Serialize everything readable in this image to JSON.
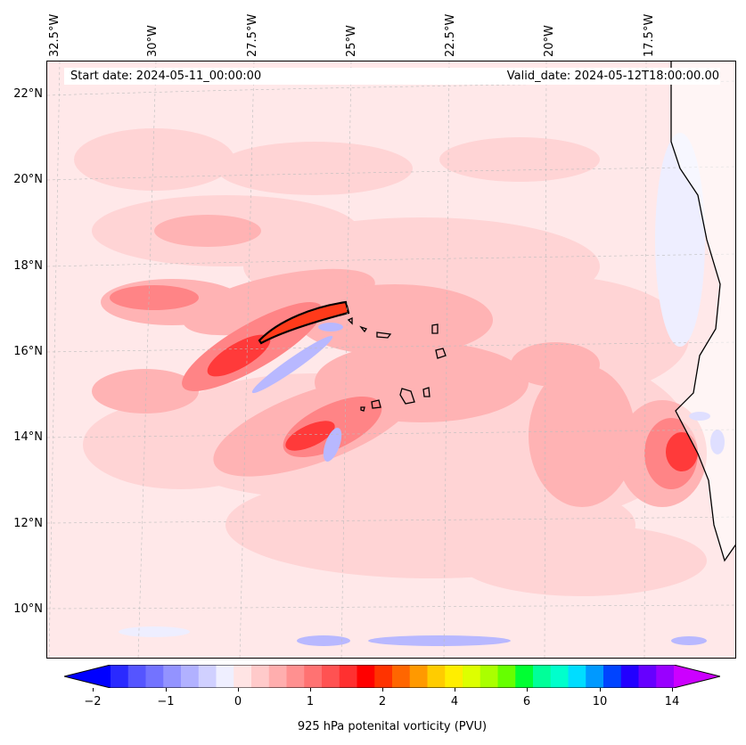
{
  "header": {
    "start_date": "Start date: 2024-05-11_00:00:00",
    "valid_date": "Valid_date: 2024-05-12T18:00:00.00"
  },
  "longitude_labels": [
    "32.5°W",
    "30°W",
    "27.5°W",
    "25°W",
    "22.5°W",
    "20°W",
    "17.5°W"
  ],
  "latitude_labels": [
    "22°N",
    "20°N",
    "18°N",
    "16°N",
    "14°N",
    "12°N",
    "10°N"
  ],
  "colorbar": {
    "title": "925 hPa potenital vorticity (PVU)",
    "tick_labels": [
      "−2",
      "−1",
      "0",
      "1",
      "2",
      "4",
      "6",
      "10",
      "14"
    ],
    "colors": [
      "#0000ff",
      "#2a2aff",
      "#5555ff",
      "#7373ff",
      "#9393ff",
      "#b1b1ff",
      "#d0d0ff",
      "#efefff",
      "#ffe4e4",
      "#ffcaca",
      "#ffaeae",
      "#ff9090",
      "#ff7272",
      "#ff5252",
      "#ff3030",
      "#ff0000",
      "#ff3300",
      "#ff6600",
      "#ff9900",
      "#ffcc00",
      "#ffee00",
      "#ddff00",
      "#aaff00",
      "#66ff00",
      "#00ff33",
      "#00ff99",
      "#00ffcc",
      "#00ddff",
      "#0099ff",
      "#0044ff",
      "#2200ff",
      "#6600ff",
      "#9900ff",
      "#cc00ff"
    ]
  },
  "map": {
    "background_color": "#ffe9ea",
    "land_color": "#ffffff",
    "coastline_color": "#000000",
    "high_pv_color": "#ff3a1a"
  }
}
